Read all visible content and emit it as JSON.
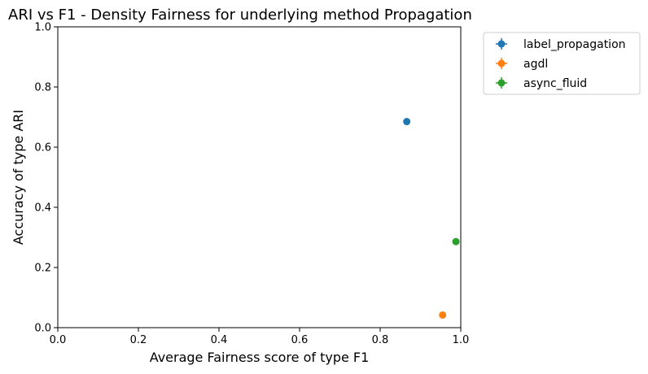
{
  "chart_data": {
    "type": "scatter",
    "title": "ARI vs F1 - Density Fairness for underlying method Propagation",
    "xlabel": "Average Fairness score of type F1",
    "ylabel": "Accuracy of type ARI",
    "xlim": [
      0.0,
      1.0
    ],
    "ylim": [
      0.0,
      1.0
    ],
    "xticks": [
      "0.0",
      "0.2",
      "0.4",
      "0.6",
      "0.8",
      "1.0"
    ],
    "yticks": [
      "0.0",
      "0.2",
      "0.4",
      "0.6",
      "0.8",
      "1.0"
    ],
    "grid": false,
    "legend_position": "outside upper-right",
    "series": [
      {
        "name": "label_propagation",
        "color": "#1f77b4",
        "x": 0.866,
        "y": 0.685
      },
      {
        "name": "agdl",
        "color": "#ff7f0e",
        "x": 0.955,
        "y": 0.042
      },
      {
        "name": "async_fluid",
        "color": "#2ca02c",
        "x": 0.988,
        "y": 0.286
      }
    ]
  }
}
